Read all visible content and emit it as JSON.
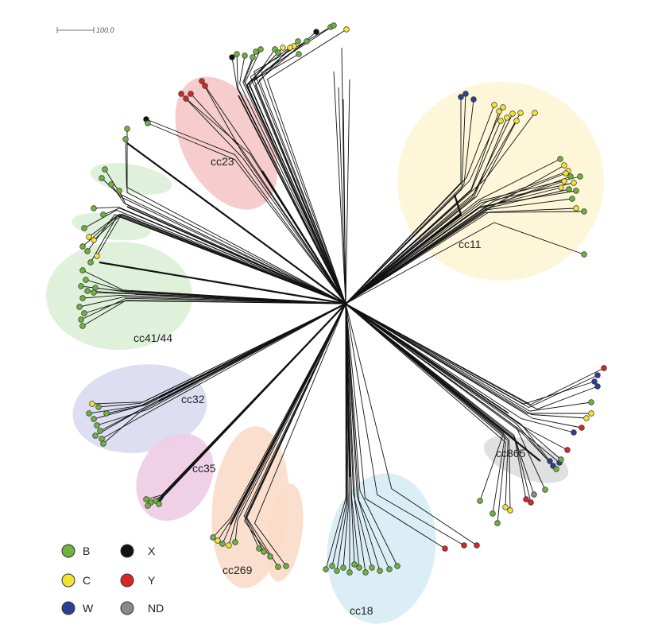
{
  "scale_bar": {
    "label": "100.0"
  },
  "clusters": [
    {
      "id": "cc23",
      "label": "cc23",
      "color": "#f4c3c3"
    },
    {
      "id": "cc11",
      "label": "cc11",
      "color": "#fdf5d6"
    },
    {
      "id": "cc41-44",
      "label": "cc41/44",
      "color": "#dcefd6"
    },
    {
      "id": "cc32",
      "label": "cc32",
      "color": "#dcdcf1"
    },
    {
      "id": "cc35",
      "label": "cc35",
      "color": "#efcde6"
    },
    {
      "id": "cc269",
      "label": "cc269",
      "color": "#fbdcc9"
    },
    {
      "id": "cc18",
      "label": "cc18",
      "color": "#d7ecf4"
    },
    {
      "id": "cc865",
      "label": "cc865",
      "color": "#dedede"
    }
  ],
  "legend": [
    {
      "key": "B",
      "label": "B",
      "color": "#6db33f"
    },
    {
      "key": "X",
      "label": "X",
      "color": "#111111"
    },
    {
      "key": "C",
      "label": "C",
      "color": "#f2e234"
    },
    {
      "key": "Y",
      "label": "Y",
      "color": "#d72626"
    },
    {
      "key": "W",
      "label": "W",
      "color": "#2c3f95"
    },
    {
      "key": "ND",
      "label": "ND",
      "color": "#8a8a8a"
    }
  ]
}
